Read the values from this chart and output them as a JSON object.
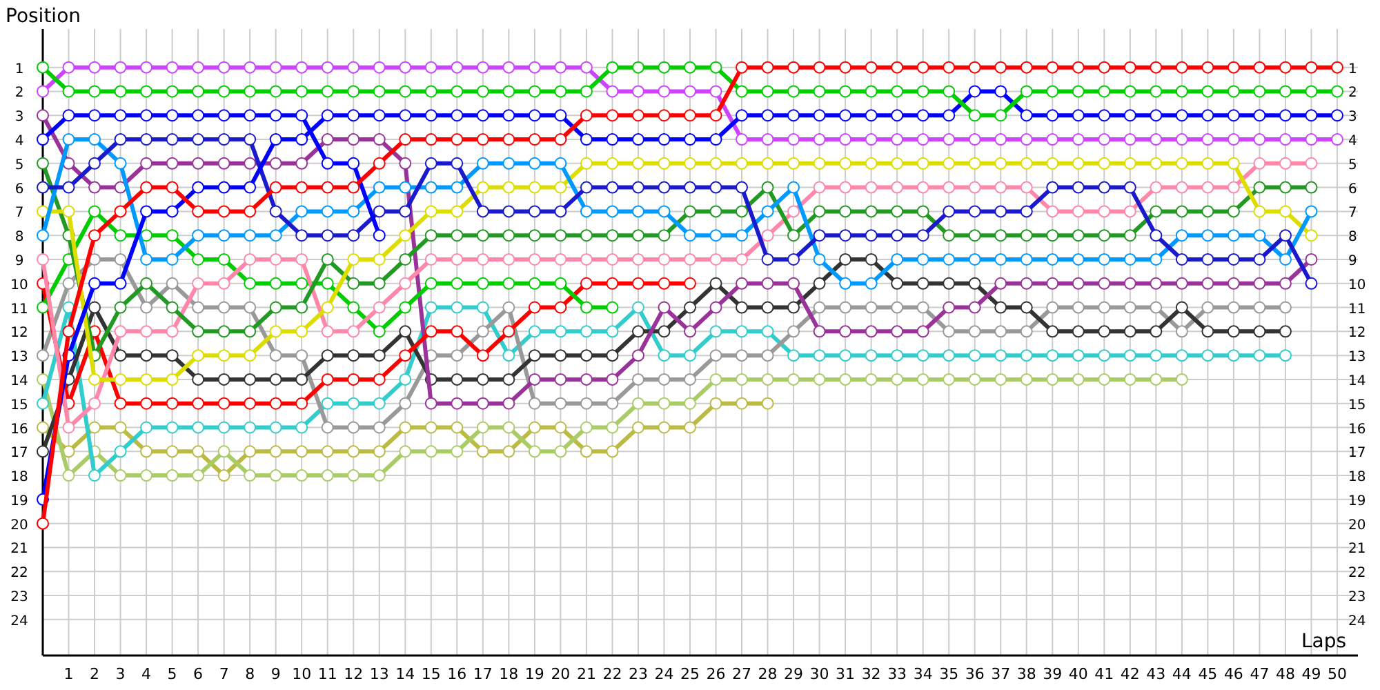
{
  "chart_data": {
    "type": "line",
    "xlabel": "Laps",
    "ylabel": "Position",
    "x": [
      0,
      1,
      2,
      3,
      4,
      5,
      6,
      7,
      8,
      9,
      10,
      11,
      12,
      13,
      14,
      15,
      16,
      17,
      18,
      19,
      20,
      21,
      22,
      23,
      24,
      25,
      26,
      27,
      28,
      29,
      30,
      31,
      32,
      33,
      34,
      35,
      36,
      37,
      38,
      39,
      40,
      41,
      42,
      43,
      44,
      45,
      46,
      47,
      48,
      49,
      50
    ],
    "xlim": [
      0,
      50.8
    ],
    "xticks": [
      1,
      2,
      3,
      4,
      5,
      6,
      7,
      8,
      9,
      10,
      11,
      12,
      13,
      14,
      15,
      16,
      17,
      18,
      19,
      20,
      21,
      22,
      23,
      24,
      25,
      26,
      27,
      28,
      29,
      30,
      31,
      32,
      33,
      34,
      35,
      36,
      37,
      38,
      39,
      40,
      41,
      42,
      43,
      44,
      45,
      46,
      47,
      48,
      49,
      50
    ],
    "ylim": [
      25.5,
      -0.6
    ],
    "yticks": [
      1,
      2,
      3,
      4,
      5,
      6,
      7,
      8,
      9,
      10,
      11,
      12,
      13,
      14,
      15,
      16,
      17,
      18,
      19,
      20,
      21,
      22,
      23,
      24
    ],
    "y2lim": [
      25.5,
      -0.6
    ],
    "y2ticks": [
      1,
      2,
      3,
      4,
      5,
      6,
      7,
      8,
      9,
      10,
      11,
      12,
      13,
      14,
      15,
      16,
      17,
      18,
      19,
      20,
      21,
      22,
      23,
      24
    ],
    "grid": true,
    "marker": "circle",
    "series": [
      {
        "color": "#bbbb44",
        "values": [
          16,
          17,
          16,
          16,
          17,
          17,
          17,
          18,
          17,
          17,
          17,
          17,
          17,
          17,
          16,
          16,
          16,
          17,
          17,
          16,
          16,
          17,
          17,
          16,
          16,
          16,
          15,
          15,
          15,
          null,
          null,
          null,
          null,
          null,
          null,
          null,
          null,
          null,
          null,
          null,
          null,
          null,
          null,
          null,
          null,
          null,
          null,
          null,
          null,
          null,
          null
        ]
      },
      {
        "color": "#aacc66",
        "values": [
          14,
          18,
          17,
          18,
          18,
          18,
          18,
          17,
          18,
          18,
          18,
          18,
          18,
          18,
          17,
          17,
          17,
          16,
          16,
          17,
          17,
          16,
          16,
          15,
          15,
          15,
          14,
          14,
          14,
          14,
          14,
          14,
          14,
          14,
          14,
          14,
          14,
          14,
          14,
          14,
          14,
          14,
          14,
          14,
          14,
          null,
          null,
          null,
          null,
          null,
          null
        ]
      },
      {
        "color": "#33cccc",
        "values": [
          15,
          11,
          18,
          17,
          16,
          16,
          16,
          16,
          16,
          16,
          16,
          15,
          15,
          15,
          14,
          11,
          11,
          11,
          13,
          12,
          12,
          12,
          12,
          11,
          13,
          13,
          12,
          12,
          12,
          13,
          13,
          13,
          13,
          13,
          13,
          13,
          13,
          13,
          13,
          13,
          13,
          13,
          13,
          13,
          13,
          13,
          13,
          13,
          13,
          null,
          null
        ]
      },
      {
        "color": "#999999",
        "values": [
          13,
          10,
          9,
          9,
          11,
          10,
          11,
          11,
          11,
          13,
          13,
          16,
          16,
          16,
          15,
          13,
          13,
          12,
          11,
          15,
          15,
          15,
          15,
          14,
          14,
          14,
          13,
          13,
          13,
          12,
          11,
          11,
          11,
          11,
          11,
          12,
          12,
          12,
          12,
          11,
          11,
          11,
          11,
          11,
          12,
          11,
          11,
          11,
          11,
          null,
          null
        ]
      },
      {
        "color": "#333333",
        "values": [
          17,
          14,
          11,
          13,
          13,
          13,
          14,
          14,
          14,
          14,
          14,
          13,
          13,
          13,
          12,
          14,
          14,
          14,
          14,
          13,
          13,
          13,
          13,
          12,
          12,
          11,
          10,
          11,
          11,
          11,
          10,
          9,
          9,
          10,
          10,
          10,
          10,
          11,
          11,
          12,
          12,
          12,
          12,
          12,
          11,
          12,
          12,
          12,
          12,
          null,
          null
        ]
      },
      {
        "color": "#993399",
        "values": [
          3,
          5,
          6,
          6,
          5,
          5,
          5,
          5,
          5,
          5,
          5,
          4,
          4,
          4,
          5,
          15,
          15,
          15,
          15,
          14,
          14,
          14,
          14,
          13,
          11,
          12,
          11,
          10,
          10,
          10,
          12,
          12,
          12,
          12,
          12,
          11,
          11,
          10,
          10,
          10,
          10,
          10,
          10,
          10,
          10,
          10,
          10,
          10,
          10,
          9,
          null
        ]
      },
      {
        "color": "#ff0000",
        "values": [
          10,
          15,
          12,
          15,
          15,
          15,
          15,
          15,
          15,
          15,
          15,
          14,
          14,
          14,
          13,
          12,
          12,
          13,
          12,
          11,
          11,
          10,
          10,
          10,
          10,
          10,
          null,
          null,
          null,
          null,
          null,
          null,
          null,
          null,
          null,
          null,
          null,
          null,
          null,
          null,
          null,
          null,
          null,
          null,
          null,
          null,
          null,
          null,
          null,
          null,
          null
        ]
      },
      {
        "color": "#00cc00",
        "values": [
          11,
          9,
          7,
          8,
          8,
          8,
          9,
          9,
          10,
          10,
          10,
          10,
          11,
          12,
          11,
          10,
          10,
          10,
          10,
          10,
          10,
          11,
          11,
          null,
          null,
          null,
          null,
          null,
          null,
          null,
          null,
          null,
          null,
          null,
          null,
          null,
          null,
          null,
          null,
          null,
          null,
          null,
          null,
          null,
          null,
          null,
          null,
          null,
          null,
          null,
          null
        ]
      },
      {
        "color": "#ff88aa",
        "values": [
          9,
          16,
          15,
          12,
          12,
          12,
          10,
          10,
          9,
          9,
          9,
          12,
          12,
          11,
          10,
          9,
          9,
          9,
          9,
          9,
          9,
          9,
          9,
          9,
          9,
          9,
          9,
          9,
          8,
          7,
          6,
          6,
          6,
          6,
          6,
          6,
          6,
          6,
          6,
          7,
          7,
          7,
          7,
          6,
          6,
          6,
          6,
          5,
          5,
          5,
          null
        ]
      },
      {
        "color": "#229922",
        "values": [
          5,
          8,
          13,
          11,
          10,
          11,
          12,
          12,
          12,
          11,
          11,
          9,
          10,
          10,
          9,
          8,
          8,
          8,
          8,
          8,
          8,
          8,
          8,
          8,
          8,
          7,
          7,
          7,
          6,
          8,
          7,
          7,
          7,
          7,
          7,
          8,
          8,
          8,
          8,
          8,
          8,
          8,
          8,
          7,
          7,
          7,
          7,
          6,
          6,
          6,
          null
        ]
      },
      {
        "color": "#dddd00",
        "values": [
          7,
          7,
          14,
          14,
          14,
          14,
          13,
          13,
          13,
          12,
          12,
          11,
          9,
          9,
          8,
          7,
          7,
          6,
          6,
          6,
          6,
          5,
          5,
          5,
          5,
          5,
          5,
          5,
          5,
          5,
          5,
          5,
          5,
          5,
          5,
          5,
          5,
          5,
          5,
          5,
          5,
          5,
          5,
          5,
          5,
          5,
          5,
          7,
          7,
          8,
          null
        ]
      },
      {
        "color": "#0099ff",
        "values": [
          8,
          4,
          4,
          5,
          9,
          9,
          8,
          8,
          8,
          8,
          7,
          7,
          7,
          6,
          6,
          6,
          6,
          5,
          5,
          5,
          5,
          7,
          7,
          7,
          7,
          8,
          8,
          8,
          7,
          6,
          9,
          10,
          10,
          9,
          9,
          9,
          9,
          9,
          9,
          9,
          9,
          9,
          9,
          9,
          8,
          8,
          8,
          8,
          9,
          7,
          null
        ]
      },
      {
        "color": "#1a1acc",
        "values": [
          6,
          6,
          5,
          4,
          4,
          4,
          4,
          4,
          4,
          7,
          8,
          8,
          8,
          7,
          7,
          5,
          5,
          7,
          7,
          7,
          7,
          6,
          6,
          6,
          6,
          6,
          6,
          6,
          9,
          9,
          8,
          8,
          8,
          8,
          8,
          7,
          7,
          7,
          7,
          6,
          6,
          6,
          6,
          8,
          9,
          9,
          9,
          9,
          8,
          10,
          null
        ]
      },
      {
        "color": "#0000ff",
        "values": [
          4,
          3,
          3,
          3,
          3,
          3,
          3,
          3,
          3,
          3,
          3,
          5,
          5,
          8,
          null,
          null,
          null,
          null,
          null,
          null,
          null,
          null,
          null,
          null,
          null,
          null,
          null,
          null,
          null,
          null,
          null,
          null,
          null,
          null,
          null,
          null,
          null,
          null,
          null,
          null,
          null,
          null,
          null,
          null,
          null,
          null,
          null,
          null,
          null,
          null,
          null
        ]
      },
      {
        "color": "#cc44ff",
        "values": [
          2,
          1,
          1,
          1,
          1,
          1,
          1,
          1,
          1,
          1,
          1,
          1,
          1,
          1,
          1,
          1,
          1,
          1,
          1,
          1,
          1,
          1,
          2,
          2,
          2,
          2,
          2,
          4,
          4,
          4,
          4,
          4,
          4,
          4,
          4,
          4,
          4,
          4,
          4,
          4,
          4,
          4,
          4,
          4,
          4,
          4,
          4,
          4,
          4,
          4,
          4
        ]
      },
      {
        "color": "#0000ff",
        "values": [
          19,
          13,
          10,
          10,
          7,
          7,
          6,
          6,
          6,
          4,
          4,
          3,
          3,
          3,
          3,
          3,
          3,
          3,
          3,
          3,
          3,
          4,
          4,
          4,
          4,
          4,
          4,
          3,
          3,
          3,
          3,
          3,
          3,
          3,
          3,
          3,
          2,
          2,
          3,
          3,
          3,
          3,
          3,
          3,
          3,
          3,
          3,
          3,
          3,
          3,
          3
        ]
      },
      {
        "color": "#00cc00",
        "values": [
          1,
          2,
          2,
          2,
          2,
          2,
          2,
          2,
          2,
          2,
          2,
          2,
          2,
          2,
          2,
          2,
          2,
          2,
          2,
          2,
          2,
          2,
          1,
          1,
          1,
          1,
          1,
          2,
          2,
          2,
          2,
          2,
          2,
          2,
          2,
          2,
          3,
          3,
          2,
          2,
          2,
          2,
          2,
          2,
          2,
          2,
          2,
          2,
          2,
          2,
          2
        ]
      },
      {
        "color": "#ff0000",
        "values": [
          20,
          12,
          8,
          7,
          6,
          6,
          7,
          7,
          7,
          6,
          6,
          6,
          6,
          5,
          4,
          4,
          4,
          4,
          4,
          4,
          4,
          3,
          3,
          3,
          3,
          3,
          3,
          1,
          1,
          1,
          1,
          1,
          1,
          1,
          1,
          1,
          1,
          1,
          1,
          1,
          1,
          1,
          1,
          1,
          1,
          1,
          1,
          1,
          1,
          1,
          1
        ]
      }
    ]
  }
}
